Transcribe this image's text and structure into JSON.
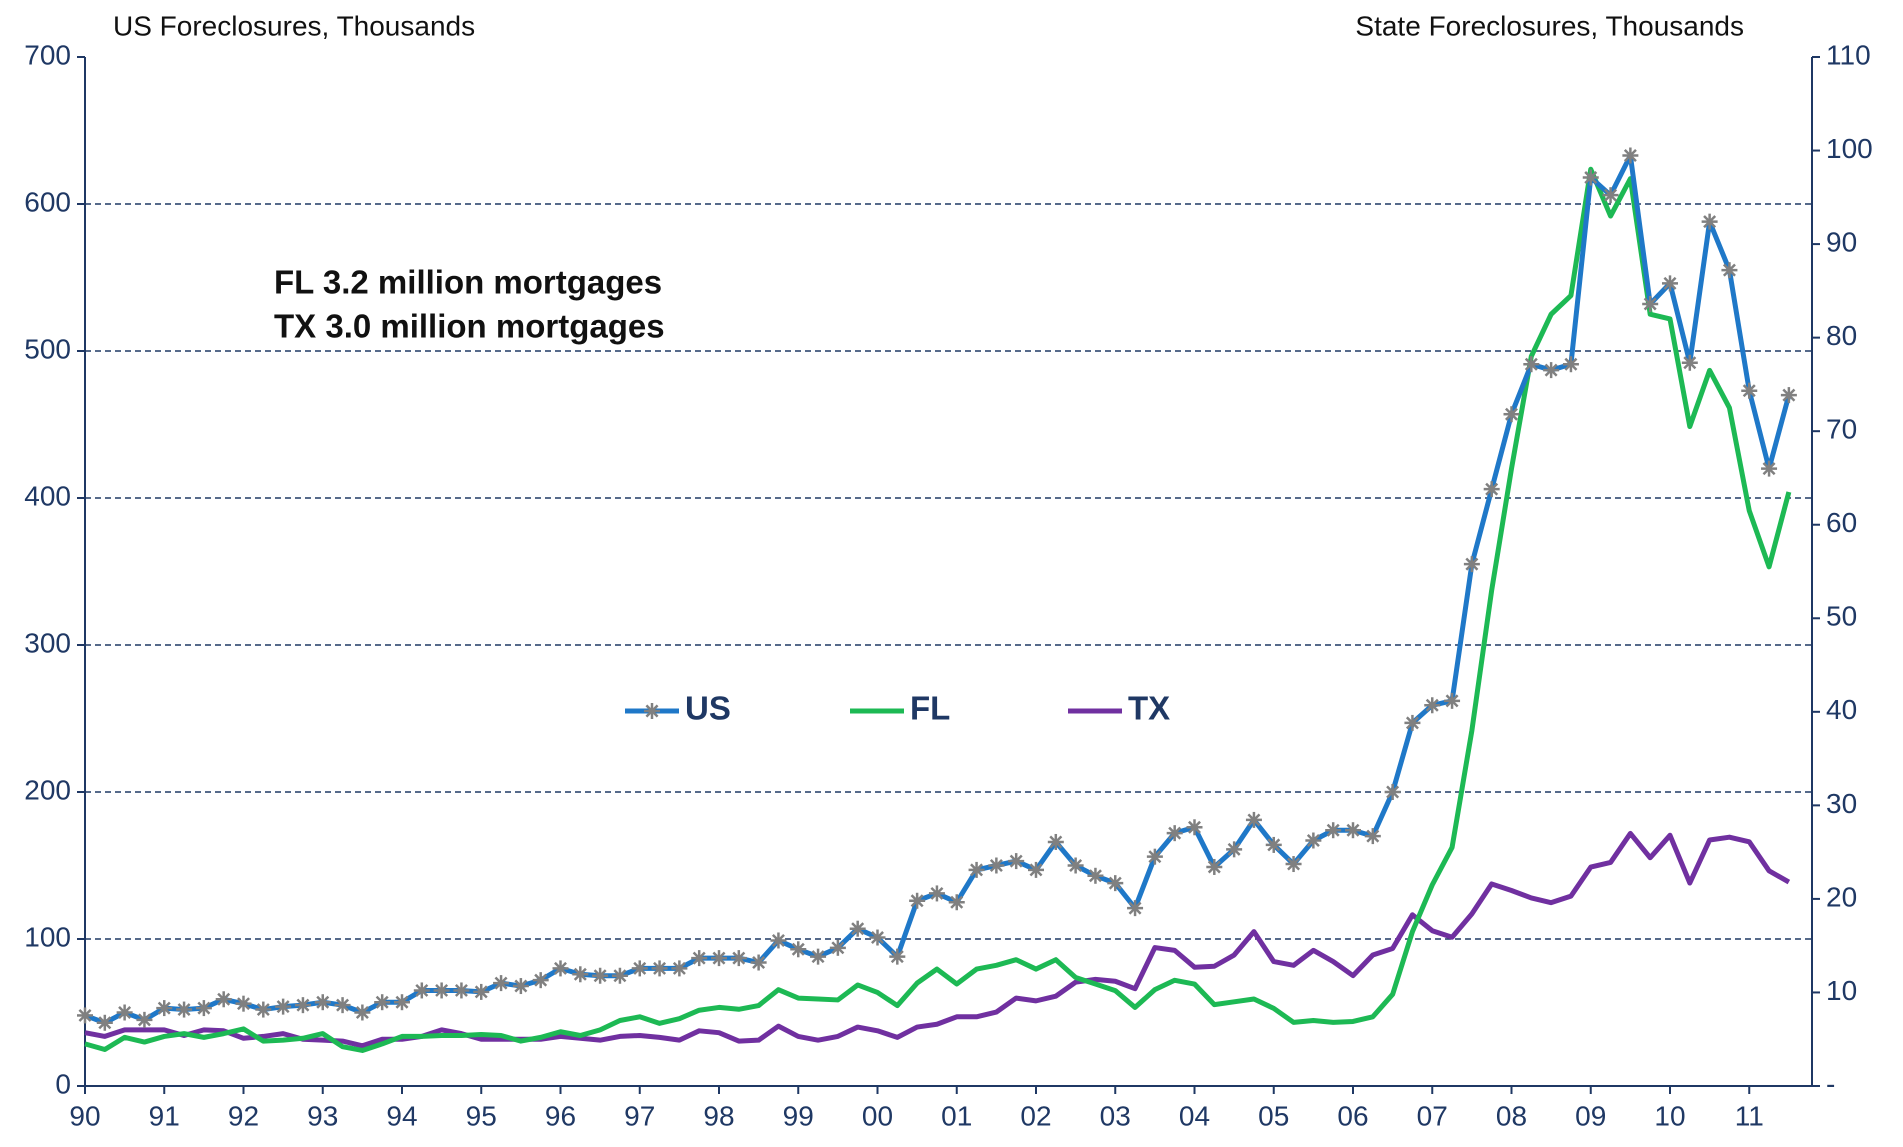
{
  "chart_data": {
    "type": "line",
    "y_title": "US Foreclosures, Thousands",
    "y2_title": "State Foreclosures, Thousands",
    "annotations": [
      "FL 3.2 million mortgages",
      "TX 3.0 million mortgages"
    ],
    "categories": [
      "90",
      null,
      null,
      null,
      "91",
      null,
      null,
      null,
      "92",
      null,
      null,
      null,
      "93",
      null,
      null,
      null,
      "94",
      null,
      null,
      null,
      "95",
      null,
      null,
      null,
      "96",
      null,
      null,
      null,
      "97",
      null,
      null,
      null,
      "98",
      null,
      null,
      null,
      "99",
      null,
      null,
      null,
      "00",
      null,
      null,
      null,
      "01",
      null,
      null,
      null,
      "02",
      null,
      null,
      null,
      "03",
      null,
      null,
      null,
      "04",
      null,
      null,
      null,
      "05",
      null,
      null,
      null,
      "06",
      null,
      null,
      null,
      "07",
      null,
      null,
      null,
      "08",
      null,
      null,
      null,
      "09",
      null,
      null,
      null,
      "10",
      null,
      null,
      null,
      "11",
      null,
      null
    ],
    "series": [
      {
        "name": "US",
        "color": "#1f78c8",
        "marker_color": "#808080",
        "axis": "y",
        "values": [
          48,
          43,
          50,
          45,
          53,
          52,
          53,
          59,
          56,
          52,
          54,
          55,
          57,
          55,
          50,
          57,
          57,
          65,
          65,
          65,
          64,
          70,
          68,
          72,
          80,
          76,
          75,
          75,
          80,
          80,
          80,
          87,
          87,
          87,
          84,
          99,
          93,
          88,
          94,
          107,
          101,
          88,
          126,
          131,
          125,
          147,
          150,
          153,
          147,
          166,
          150,
          143,
          138,
          121,
          156,
          172,
          176,
          149,
          161,
          181,
          164,
          151,
          167,
          174,
          174,
          170,
          200,
          247,
          259,
          262,
          355,
          406,
          457,
          491,
          487,
          491,
          618,
          606,
          633,
          532,
          546,
          492,
          588,
          555,
          473,
          420,
          470
        ]
      },
      {
        "name": "FL",
        "color": "#1db954",
        "axis": "y2",
        "values": [
          4.5,
          3.9,
          5.2,
          4.7,
          5.3,
          5.6,
          5.2,
          5.6,
          6.1,
          4.8,
          4.9,
          5.1,
          5.6,
          4.2,
          3.8,
          4.5,
          5.3,
          5.3,
          5.4,
          5.4,
          5.5,
          5.4,
          4.8,
          5.2,
          5.8,
          5.4,
          6.0,
          7.0,
          7.4,
          6.7,
          7.2,
          8.1,
          8.4,
          8.2,
          8.6,
          10.3,
          9.4,
          9.3,
          9.2,
          10.8,
          10.0,
          8.6,
          11.0,
          12.5,
          10.9,
          12.5,
          12.9,
          13.5,
          12.5,
          13.5,
          11.6,
          10.9,
          10.2,
          8.4,
          10.3,
          11.3,
          10.9,
          8.7,
          9.0,
          9.3,
          8.3,
          6.8,
          7.0,
          6.8,
          6.9,
          7.4,
          9.8,
          16.5,
          21.5,
          25.5,
          38,
          53,
          66,
          78,
          82.5,
          84.5,
          98,
          93,
          97,
          82.5,
          82,
          70.5,
          76.5,
          72.5,
          61.5,
          55.5,
          63.5
        ]
      },
      {
        "name": "TX",
        "color": "#7030a0",
        "axis": "y2",
        "values": [
          5.7,
          5.3,
          6.0,
          6.0,
          6.0,
          5.4,
          6.0,
          5.9,
          5.1,
          5.3,
          5.6,
          5.0,
          4.9,
          4.8,
          4.3,
          5.0,
          5.0,
          5.3,
          6.0,
          5.6,
          5.0,
          5.0,
          5.0,
          5.0,
          5.3,
          5.1,
          4.9,
          5.3,
          5.4,
          5.2,
          4.9,
          5.9,
          5.7,
          4.8,
          4.9,
          6.4,
          5.3,
          4.9,
          5.3,
          6.3,
          5.9,
          5.2,
          6.3,
          6.6,
          7.4,
          7.4,
          7.9,
          9.4,
          9.1,
          9.6,
          11.1,
          11.4,
          11.2,
          10.4,
          14.8,
          14.5,
          12.7,
          12.8,
          14.0,
          16.5,
          13.3,
          12.9,
          14.5,
          13.3,
          11.8,
          14.0,
          14.7,
          18.3,
          16.6,
          15.9,
          18.4,
          21.6,
          20.9,
          20.1,
          19.6,
          20.3,
          23.4,
          23.9,
          27.0,
          24.4,
          26.8,
          21.7,
          26.3,
          26.6,
          26.1,
          23.0,
          21.8
        ]
      }
    ],
    "ylim": [
      0,
      700
    ],
    "yticks": [
      0,
      100,
      200,
      300,
      400,
      500,
      600,
      700
    ],
    "y2lim": [
      0,
      110
    ],
    "y2ticks": [
      {
        "value": 0,
        "label": "-"
      },
      10,
      20,
      30,
      40,
      50,
      60,
      70,
      80,
      90,
      100,
      110
    ],
    "grid": true,
    "legend_position": "center"
  }
}
